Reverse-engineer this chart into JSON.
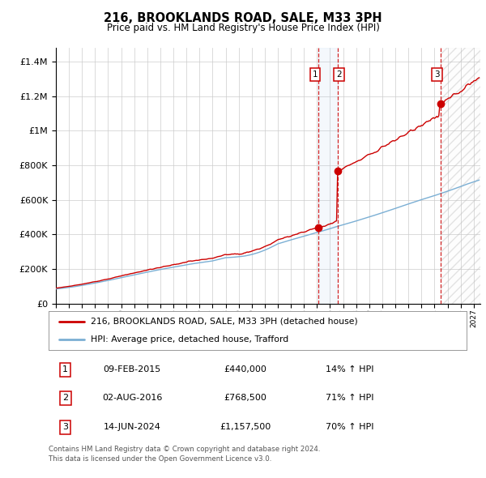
{
  "title": "216, BROOKLANDS ROAD, SALE, M33 3PH",
  "subtitle": "Price paid vs. HM Land Registry's House Price Index (HPI)",
  "legend_line1": "216, BROOKLANDS ROAD, SALE, M33 3PH (detached house)",
  "legend_line2": "HPI: Average price, detached house, Trafford",
  "footer": "Contains HM Land Registry data © Crown copyright and database right 2024.\nThis data is licensed under the Open Government Licence v3.0.",
  "transactions": [
    {
      "num": 1,
      "date": "09-FEB-2015",
      "price": 440000,
      "price_str": "£440,000",
      "hpi_change": "14%",
      "direction": "↑"
    },
    {
      "num": 2,
      "date": "02-AUG-2016",
      "price": 768500,
      "price_str": "£768,500",
      "hpi_change": "71%",
      "direction": "↑"
    },
    {
      "num": 3,
      "date": "14-JUN-2024",
      "price": 1157500,
      "price_str": "£1,157,500",
      "hpi_change": "70%",
      "direction": "↑"
    }
  ],
  "hpi_color": "#7bafd4",
  "price_color": "#cc0000",
  "dot_color": "#cc0000",
  "vline_color": "#cc0000",
  "grid_color": "#cccccc",
  "bg_color": "#ffffff",
  "plot_bg": "#ffffff",
  "ylim": [
    0,
    1480000
  ],
  "yticks": [
    0,
    200000,
    400000,
    600000,
    800000,
    1000000,
    1200000,
    1400000
  ],
  "xlim_start": 1995.0,
  "xlim_end": 2027.5,
  "t1_year": 2015.1,
  "t2_year": 2016.58,
  "t3_year": 2024.45
}
